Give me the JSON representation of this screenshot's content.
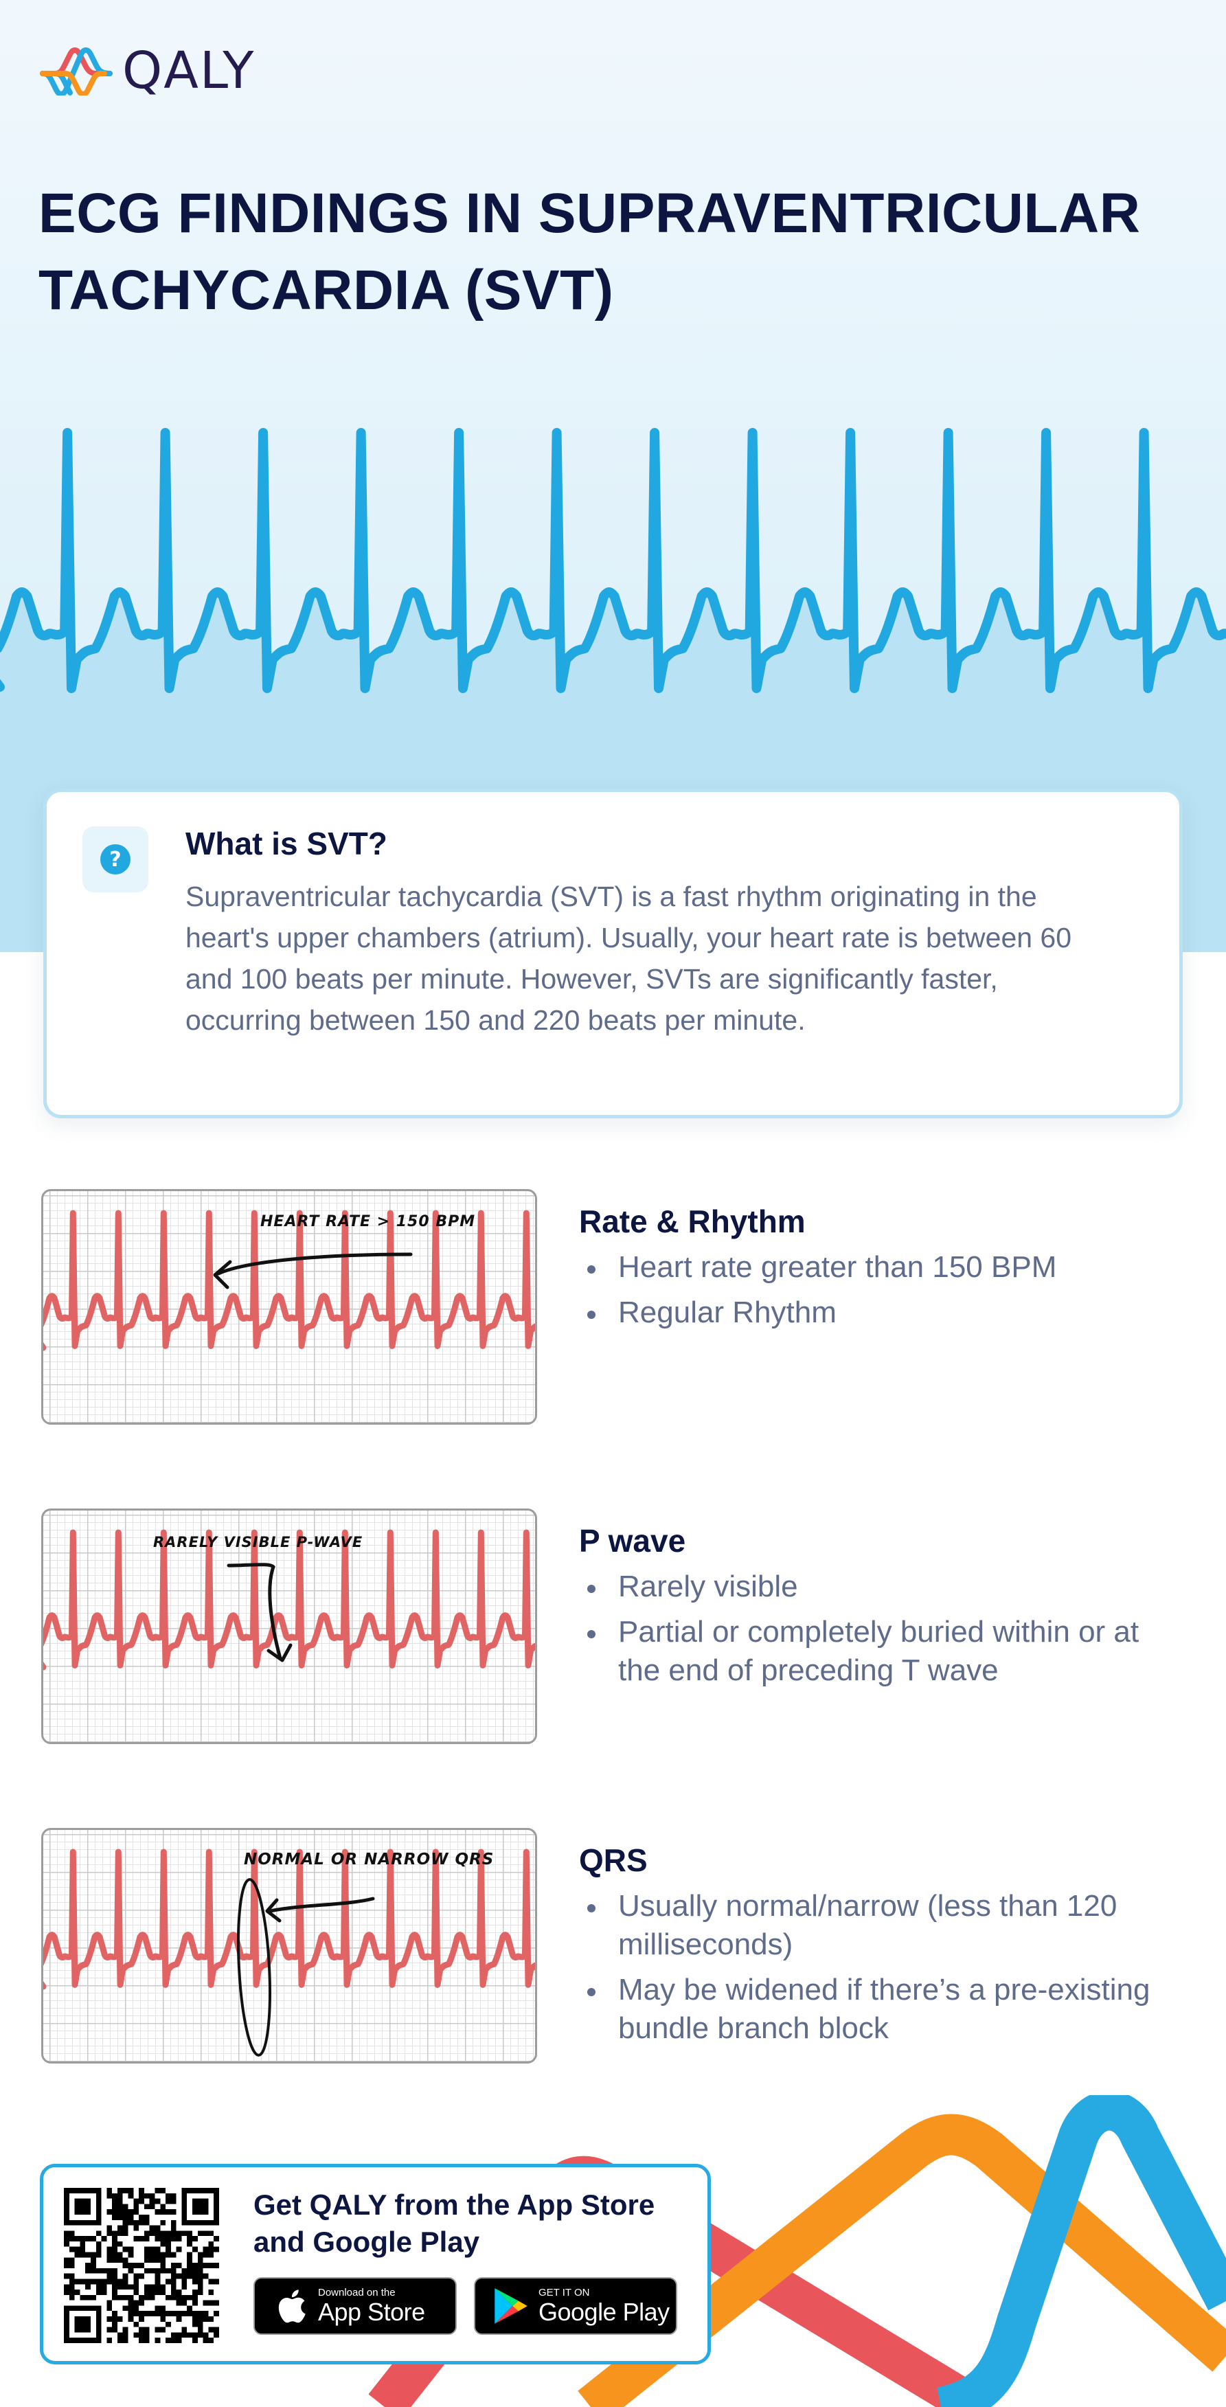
{
  "brand": {
    "name": "QALY",
    "logo_icon": "qaly-wave-logo-icon",
    "colors": {
      "blue": "#27a9e1",
      "red": "#e8555a",
      "orange": "#f7941d",
      "navy": "#0d1640"
    }
  },
  "header": {
    "title": "ECG FINDINGS IN SUPRAVENTRICULAR TACHYCARDIA (SVT)"
  },
  "intro_card": {
    "icon": "question-circle-icon",
    "title": "What is SVT?",
    "text": "Supraventricular tachycardia (SVT) is a fast rhythm originating in the heart's upper chambers (atrium). Usually, your heart rate is between 60 and 100 beats per minute. However, SVTs are significantly faster, occurring between 150 and 220 beats per minute."
  },
  "findings": [
    {
      "annotation": "HEART RATE > 150 BPM",
      "title": "Rate & Rhythm",
      "bullets": [
        "Heart rate greater than 150 BPM",
        "Regular Rhythm"
      ]
    },
    {
      "annotation": "RARELY VISIBLE P-WAVE",
      "title": "P wave",
      "bullets": [
        "Rarely visible",
        "Partial or completely buried within or at the end of preceding T wave"
      ]
    },
    {
      "annotation": "NORMAL OR NARROW QRS",
      "title": "QRS",
      "bullets": [
        "Usually normal/narrow (less than 120 milliseconds)",
        "May be widened if there’s a pre-existing bundle branch block"
      ]
    }
  ],
  "footer": {
    "title": "Get QALY from the App Store and Google Play",
    "qr_icon": "qr-code-icon",
    "app_store": {
      "small": "Download on the",
      "big": "App Store",
      "icon": "apple-icon"
    },
    "google_play": {
      "small": "GET IT ON",
      "big": "Google Play",
      "icon": "google-play-icon"
    }
  }
}
